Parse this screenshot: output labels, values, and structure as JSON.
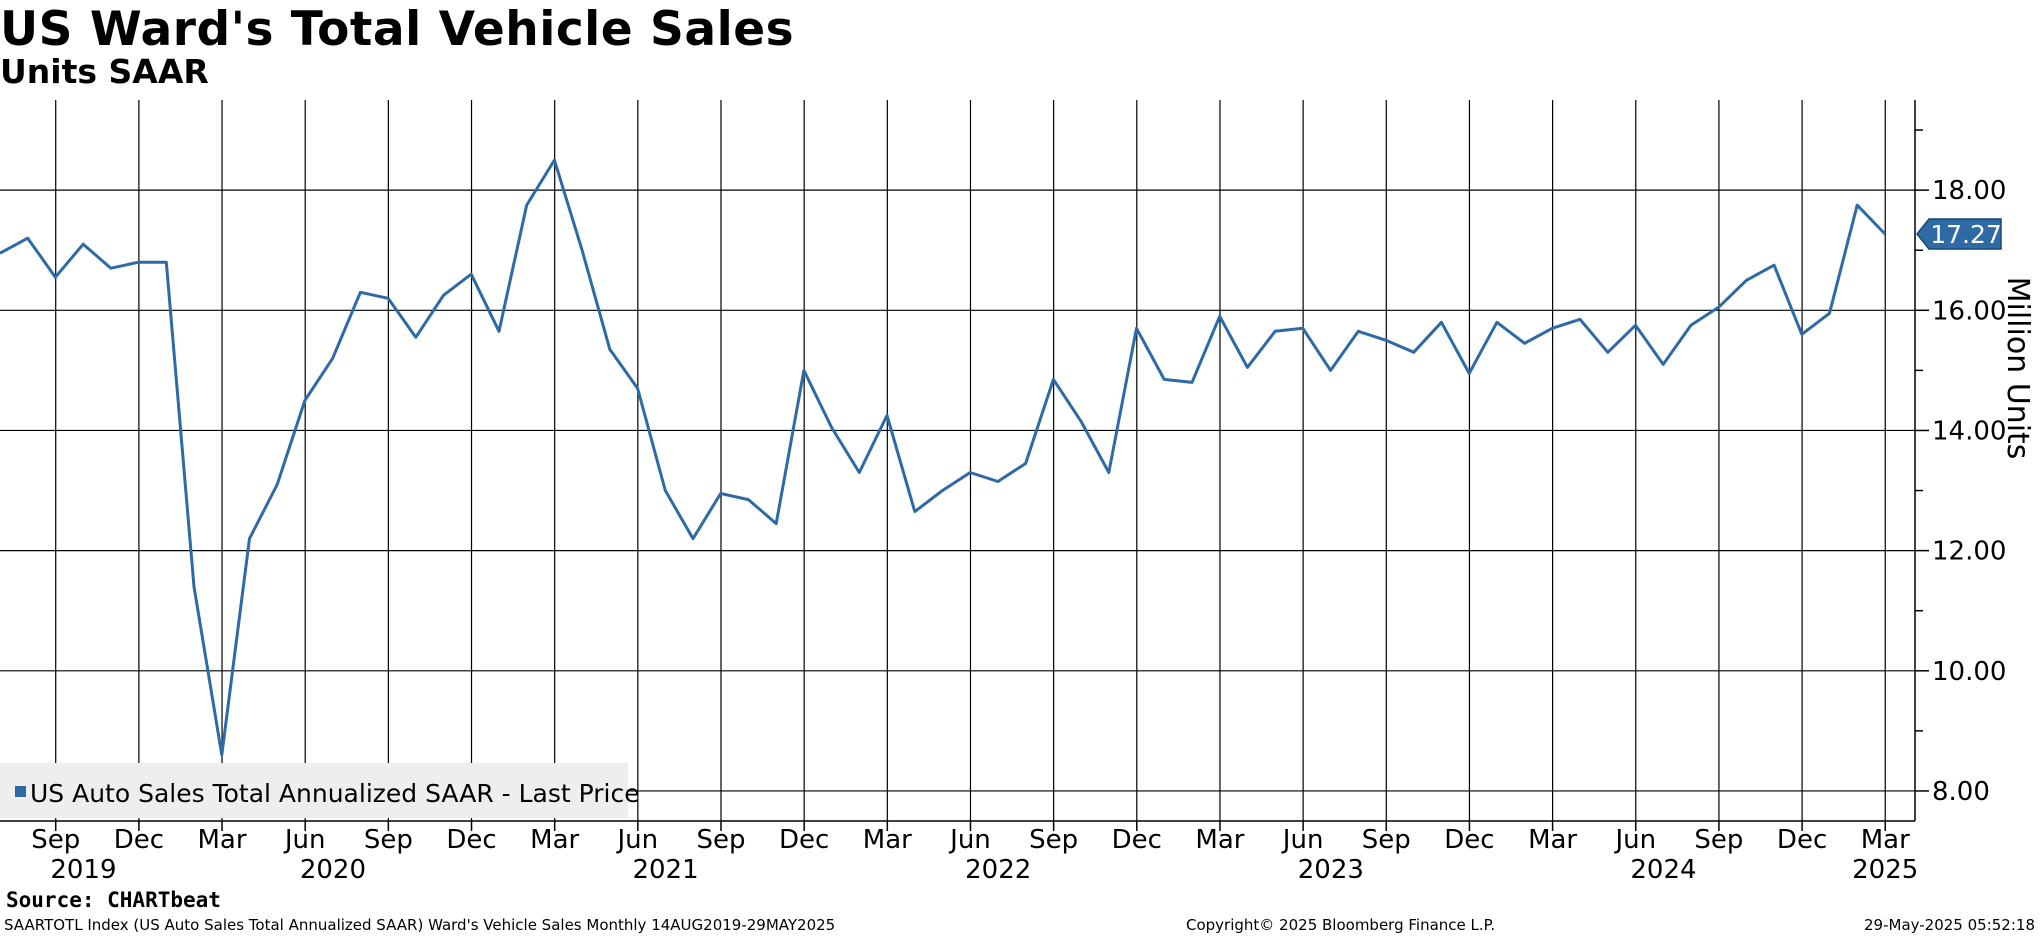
{
  "chart_data": {
    "type": "line",
    "title": "US Ward's Total Vehicle Sales",
    "subtitle": "Units SAAR",
    "ylabel": "Million Units",
    "ylim": [
      7.5,
      19.5
    ],
    "y_ticks": [
      "8.00",
      "10.00",
      "12.00",
      "14.00",
      "16.00",
      "18.00"
    ],
    "y_tick_values": [
      8,
      10,
      12,
      14,
      16,
      18
    ],
    "grid": true,
    "legend_position": "bottom-left",
    "x_tick_labels": [
      {
        "month": "Sep",
        "date": "2019-09"
      },
      {
        "month": "Dec",
        "date": "2019-12"
      },
      {
        "month": "Mar",
        "date": "2020-03"
      },
      {
        "month": "Jun",
        "date": "2020-06"
      },
      {
        "month": "Sep",
        "date": "2020-09"
      },
      {
        "month": "Dec",
        "date": "2020-12"
      },
      {
        "month": "Mar",
        "date": "2021-03"
      },
      {
        "month": "Jun",
        "date": "2021-06"
      },
      {
        "month": "Sep",
        "date": "2021-09"
      },
      {
        "month": "Dec",
        "date": "2021-12"
      },
      {
        "month": "Mar",
        "date": "2022-03"
      },
      {
        "month": "Jun",
        "date": "2022-06"
      },
      {
        "month": "Sep",
        "date": "2022-09"
      },
      {
        "month": "Dec",
        "date": "2022-12"
      },
      {
        "month": "Mar",
        "date": "2023-03"
      },
      {
        "month": "Jun",
        "date": "2023-06"
      },
      {
        "month": "Sep",
        "date": "2023-09"
      },
      {
        "month": "Dec",
        "date": "2023-12"
      },
      {
        "month": "Mar",
        "date": "2024-03"
      },
      {
        "month": "Jun",
        "date": "2024-06"
      },
      {
        "month": "Sep",
        "date": "2024-09"
      },
      {
        "month": "Dec",
        "date": "2024-12"
      },
      {
        "month": "Mar",
        "date": "2025-03"
      }
    ],
    "x_year_labels": [
      {
        "year": "2019",
        "date": "2019-10"
      },
      {
        "year": "2020",
        "date": "2020-07"
      },
      {
        "year": "2021",
        "date": "2021-07"
      },
      {
        "year": "2022",
        "date": "2022-07"
      },
      {
        "year": "2023",
        "date": "2023-07"
      },
      {
        "year": "2024",
        "date": "2024-07"
      },
      {
        "year": "2025",
        "date": "2025-03"
      }
    ],
    "series": [
      {
        "name": "US Auto Sales Total Annualized SAAR - Last Price",
        "color": "#2e6aa6",
        "last_value_label": "17.27",
        "dates": [
          "2019-08",
          "2019-09",
          "2019-10",
          "2019-11",
          "2019-12",
          "2020-01",
          "2020-02",
          "2020-03",
          "2020-04",
          "2020-05",
          "2020-06",
          "2020-07",
          "2020-08",
          "2020-09",
          "2020-10",
          "2020-11",
          "2020-12",
          "2021-01",
          "2021-02",
          "2021-03",
          "2021-04",
          "2021-05",
          "2021-06",
          "2021-07",
          "2021-08",
          "2021-09",
          "2021-10",
          "2021-11",
          "2021-12",
          "2022-01",
          "2022-02",
          "2022-03",
          "2022-04",
          "2022-05",
          "2022-06",
          "2022-07",
          "2022-08",
          "2022-09",
          "2022-10",
          "2022-11",
          "2022-12",
          "2023-01",
          "2023-02",
          "2023-03",
          "2023-04",
          "2023-05",
          "2023-06",
          "2023-07",
          "2023-08",
          "2023-09",
          "2023-10",
          "2023-11",
          "2023-12",
          "2024-01",
          "2024-02",
          "2024-03",
          "2024-04",
          "2024-05",
          "2024-06",
          "2024-07",
          "2024-08",
          "2024-09",
          "2024-10",
          "2024-11",
          "2024-12",
          "2025-01",
          "2025-02",
          "2025-03",
          "2025-04"
        ],
        "values": [
          16.95,
          17.2,
          16.55,
          17.1,
          16.7,
          16.8,
          16.8,
          11.4,
          8.6,
          12.2,
          13.1,
          14.5,
          15.2,
          16.3,
          16.2,
          15.55,
          16.25,
          16.6,
          15.65,
          17.75,
          18.5,
          17.0,
          15.35,
          14.7,
          13.0,
          12.2,
          12.95,
          12.85,
          12.45,
          15.0,
          14.05,
          13.3,
          14.25,
          12.65,
          13.0,
          13.3,
          13.15,
          13.45,
          14.85,
          14.15,
          13.3,
          15.7,
          14.85,
          14.8,
          15.9,
          15.05,
          15.65,
          15.7,
          15.0,
          15.65,
          15.5,
          15.3,
          15.8,
          14.95,
          15.8,
          15.45,
          15.7,
          15.85,
          15.3,
          15.75,
          15.1,
          15.75,
          16.05,
          16.5,
          16.75,
          15.6,
          15.95,
          17.75,
          17.27
        ]
      }
    ]
  },
  "source": "Source: CHARTbeat",
  "footer": {
    "left": "SAARTOTL Index (US Auto Sales Total Annualized SAAR) Ward's Vehicle Sales  Monthly 14AUG2019-29MAY2025",
    "middle": "Copyright© 2025 Bloomberg Finance L.P.",
    "right": "29-May-2025 05:52:18"
  }
}
